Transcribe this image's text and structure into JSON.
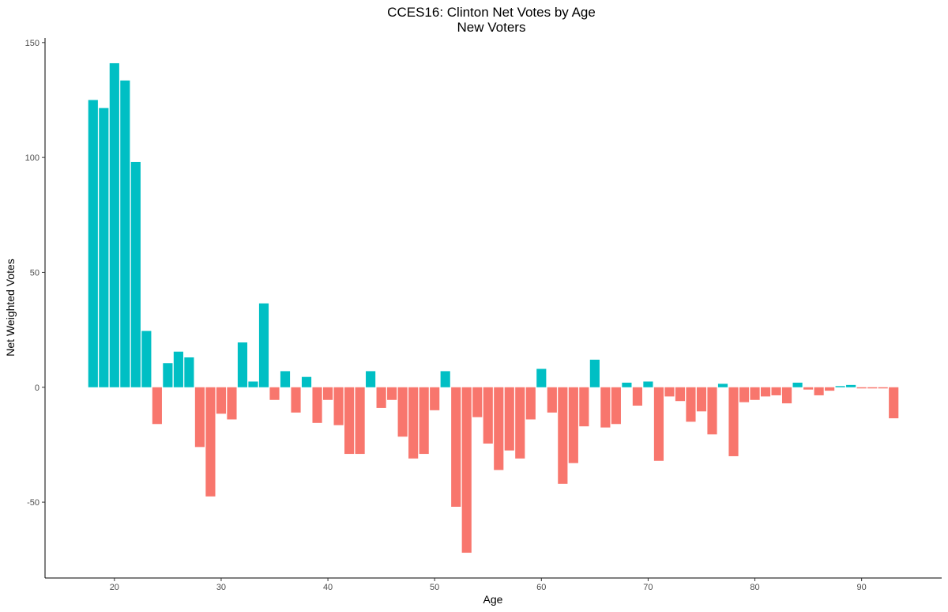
{
  "chart_data": {
    "type": "bar",
    "title": "CCES16: Clinton Net Votes by Age",
    "subtitle": "New Voters",
    "xlabel": "Age",
    "ylabel": "Net Weighted Votes",
    "xlim": [
      13.5,
      97.5
    ],
    "ylim": [
      -83,
      152
    ],
    "xticks": [
      20,
      30,
      40,
      50,
      60,
      70,
      80,
      90
    ],
    "yticks": [
      -50,
      0,
      50,
      100,
      150
    ],
    "grid": false,
    "legend": "none",
    "colors": {
      "positive": "#00BFC4",
      "negative": "#F8766D"
    },
    "x": [
      18,
      19,
      20,
      21,
      22,
      23,
      24,
      25,
      26,
      27,
      28,
      29,
      30,
      31,
      32,
      33,
      34,
      35,
      36,
      37,
      38,
      39,
      40,
      41,
      42,
      43,
      44,
      45,
      46,
      47,
      48,
      49,
      50,
      51,
      52,
      53,
      54,
      55,
      56,
      57,
      58,
      59,
      60,
      61,
      62,
      63,
      64,
      65,
      66,
      67,
      68,
      69,
      70,
      71,
      72,
      73,
      74,
      75,
      76,
      77,
      78,
      79,
      80,
      81,
      82,
      83,
      84,
      85,
      86,
      87,
      88,
      89,
      90,
      91,
      92,
      93
    ],
    "values": [
      125,
      121.5,
      141,
      133.5,
      98,
      24.5,
      -16,
      10.5,
      15.5,
      13,
      -26,
      -47.5,
      -11.5,
      -14,
      19.5,
      2.5,
      36.5,
      -5.5,
      7,
      -11,
      4.5,
      -15.5,
      -5.5,
      -16.5,
      -29,
      -29,
      7,
      -9,
      -5.5,
      -21.5,
      -31,
      -29,
      -10,
      7,
      -52,
      -72,
      -13,
      -24.5,
      -36,
      -27.5,
      -31,
      -14,
      8,
      -11,
      -42,
      -33,
      -17,
      12,
      -17.5,
      -16,
      2,
      -8,
      2.5,
      -32,
      -4,
      -6,
      -15,
      -10.5,
      -20.5,
      1.5,
      -30,
      -6.5,
      -5.5,
      -4,
      -3.5,
      -7,
      2,
      -1,
      -3.5,
      -1.5,
      0.5,
      1,
      -0.5,
      -0.5,
      -0.5,
      -13.5
    ]
  }
}
